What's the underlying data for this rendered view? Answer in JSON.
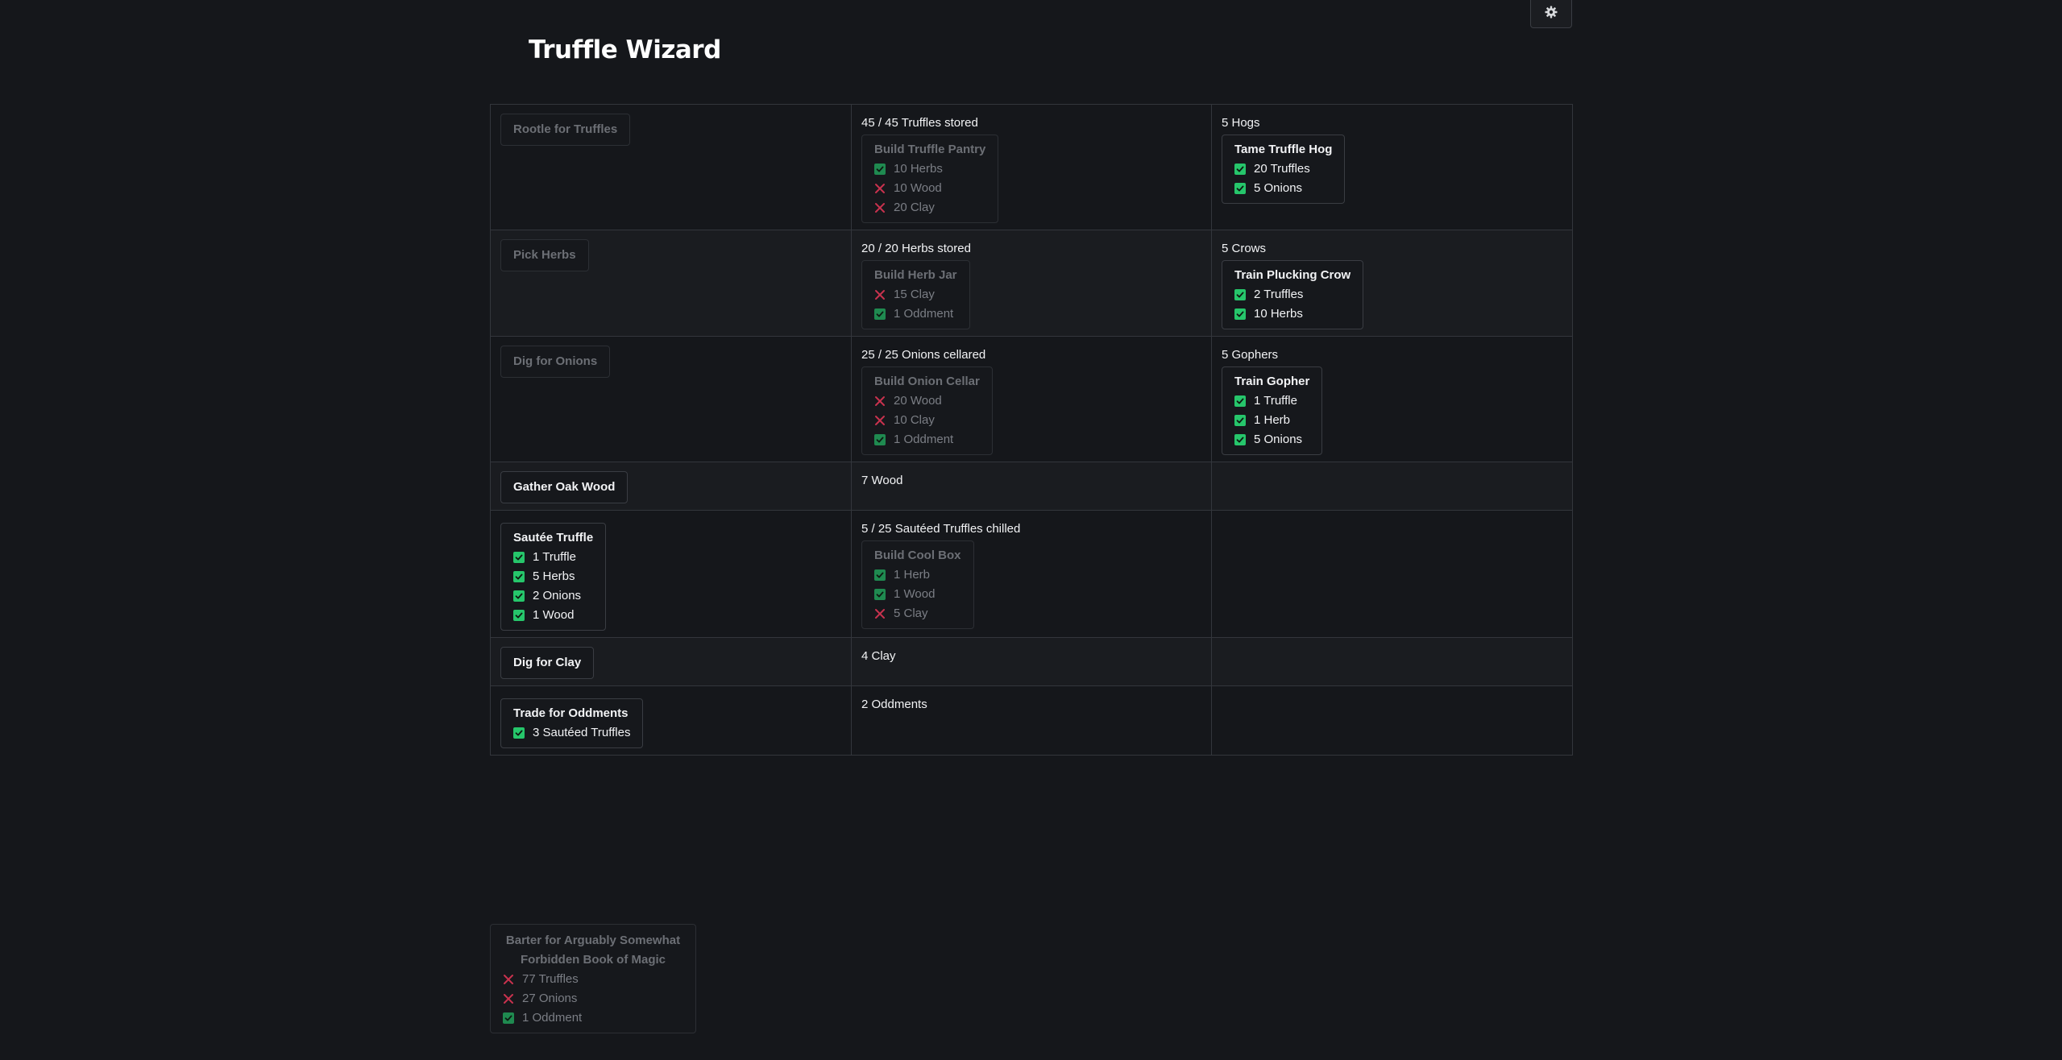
{
  "app": {
    "title": "Truffle Wizard",
    "settings_icon": "gear-icon"
  },
  "colors": {
    "background": "#15171b",
    "check": "#26c66b",
    "cross": "#c8324e"
  },
  "rows": [
    {
      "action": {
        "label": "Rootle for Truffles",
        "enabled": false
      },
      "storage": {
        "text": "45 / 45 Truffles stored",
        "card": {
          "title": "Build Truffle Pantry",
          "enabled": false,
          "reqs": [
            {
              "text": "10 Herbs",
              "met": true
            },
            {
              "text": "10 Wood",
              "met": false
            },
            {
              "text": "20 Clay",
              "met": false
            }
          ]
        }
      },
      "helper": {
        "text": "5 Hogs",
        "card": {
          "title": "Tame Truffle Hog",
          "enabled": true,
          "reqs": [
            {
              "text": "20 Truffles",
              "met": true
            },
            {
              "text": "5 Onions",
              "met": true
            }
          ]
        }
      }
    },
    {
      "action": {
        "label": "Pick Herbs",
        "enabled": false
      },
      "storage": {
        "text": "20 / 20 Herbs stored",
        "card": {
          "title": "Build Herb Jar",
          "enabled": false,
          "reqs": [
            {
              "text": "15 Clay",
              "met": false
            },
            {
              "text": "1 Oddment",
              "met": true
            }
          ]
        }
      },
      "helper": {
        "text": "5 Crows",
        "card": {
          "title": "Train Plucking Crow",
          "enabled": true,
          "reqs": [
            {
              "text": "2 Truffles",
              "met": true
            },
            {
              "text": "10 Herbs",
              "met": true
            }
          ]
        }
      }
    },
    {
      "action": {
        "label": "Dig for Onions",
        "enabled": false
      },
      "storage": {
        "text": "25 / 25 Onions cellared",
        "card": {
          "title": "Build Onion Cellar",
          "enabled": false,
          "reqs": [
            {
              "text": "20 Wood",
              "met": false
            },
            {
              "text": "10 Clay",
              "met": false
            },
            {
              "text": "1 Oddment",
              "met": true
            }
          ]
        }
      },
      "helper": {
        "text": "5 Gophers",
        "card": {
          "title": "Train Gopher",
          "enabled": true,
          "reqs": [
            {
              "text": "1 Truffle",
              "met": true
            },
            {
              "text": "1 Herb",
              "met": true
            },
            {
              "text": "5 Onions",
              "met": true
            }
          ]
        }
      }
    },
    {
      "action": {
        "label": "Gather Oak Wood",
        "enabled": true
      },
      "storage": {
        "text": "7 Wood"
      },
      "helper": {}
    },
    {
      "action": {
        "card": {
          "title": "Sautée Truffle",
          "enabled": true,
          "reqs": [
            {
              "text": "1 Truffle",
              "met": true
            },
            {
              "text": "5 Herbs",
              "met": true
            },
            {
              "text": "2 Onions",
              "met": true
            },
            {
              "text": "1 Wood",
              "met": true
            }
          ]
        }
      },
      "storage": {
        "text": "5 / 25 Sautéed Truffles chilled",
        "card": {
          "title": "Build Cool Box",
          "enabled": false,
          "reqs": [
            {
              "text": "1 Herb",
              "met": true
            },
            {
              "text": "1 Wood",
              "met": true
            },
            {
              "text": "5 Clay",
              "met": false
            }
          ]
        }
      },
      "helper": {}
    },
    {
      "action": {
        "label": "Dig for Clay",
        "enabled": true
      },
      "storage": {
        "text": "4 Clay"
      },
      "helper": {}
    },
    {
      "action": {
        "card": {
          "title": "Trade for Oddments",
          "enabled": true,
          "reqs": [
            {
              "text": "3 Sautéed Truffles",
              "met": true
            }
          ]
        }
      },
      "storage": {
        "text": "2 Oddments"
      },
      "helper": {}
    }
  ],
  "special": {
    "title": "Barter for Arguably Somewhat Forbidden Book of Magic",
    "enabled": false,
    "reqs": [
      {
        "text": "77 Truffles",
        "met": false
      },
      {
        "text": "27 Onions",
        "met": false
      },
      {
        "text": "1 Oddment",
        "met": true
      }
    ]
  }
}
